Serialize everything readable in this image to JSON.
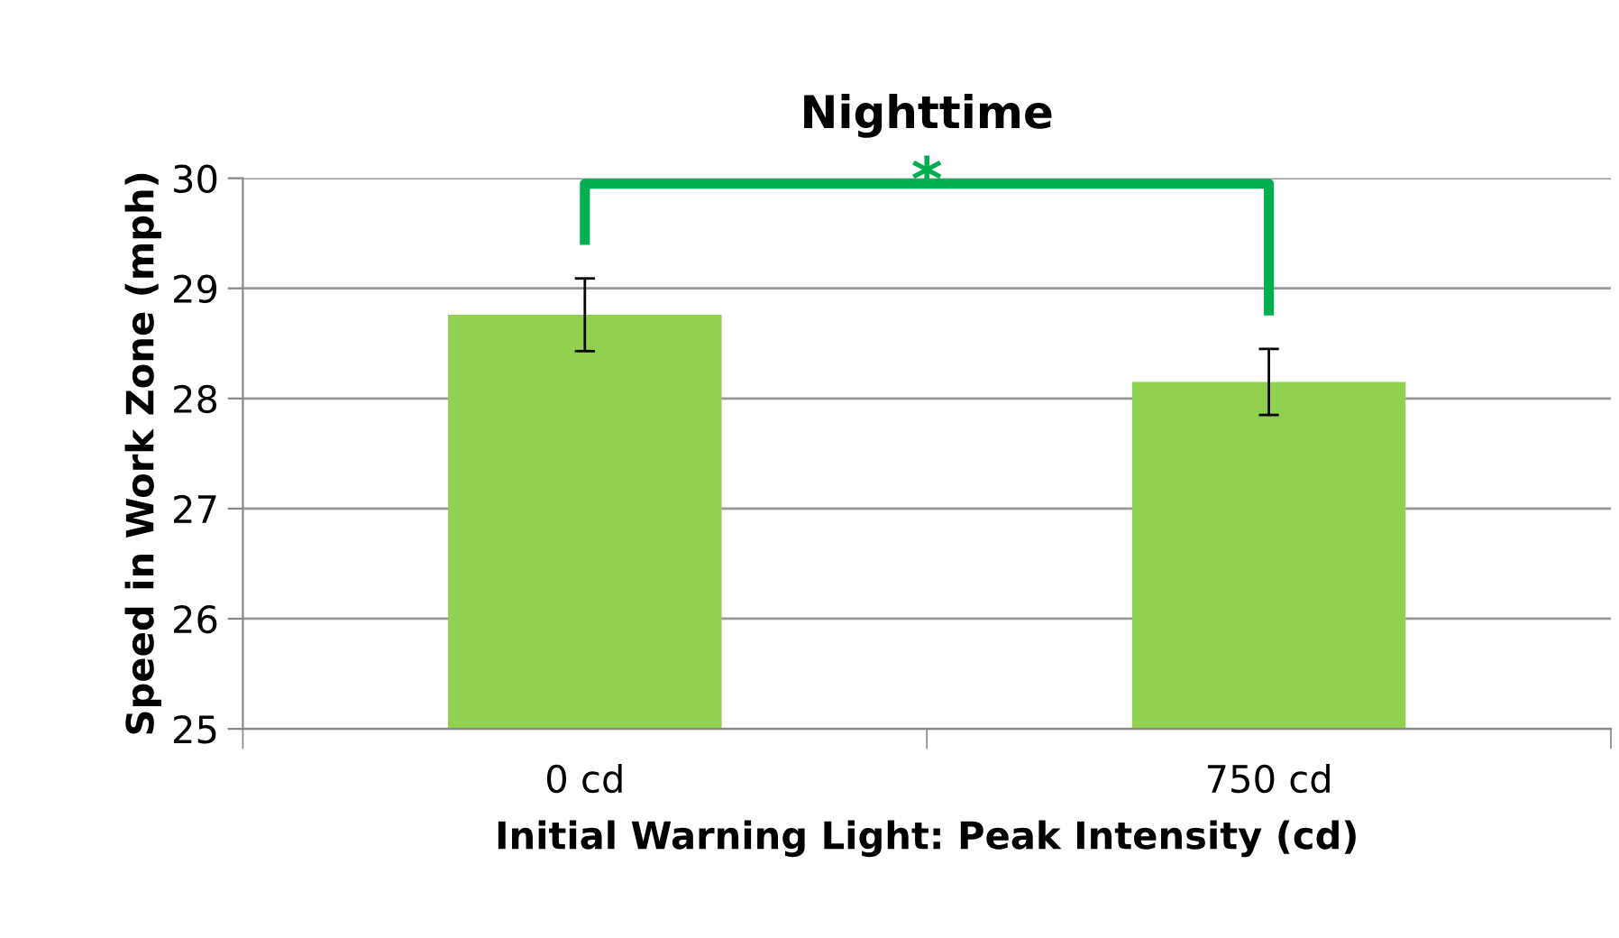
{
  "chart_data": {
    "type": "bar",
    "title": "Nighttime",
    "xlabel": "Initial Warning Light: Peak Intensity (cd)",
    "ylabel": "Speed in Work Zone (mph)",
    "categories": [
      "0 cd",
      "750 cd"
    ],
    "values": [
      28.76,
      28.15
    ],
    "errors": [
      0.33,
      0.3
    ],
    "color": "#92d050",
    "ylim": [
      25,
      30
    ],
    "yticks": [
      25,
      26,
      27,
      28,
      29,
      30
    ],
    "grid": "y",
    "annotations": [
      "*"
    ]
  }
}
